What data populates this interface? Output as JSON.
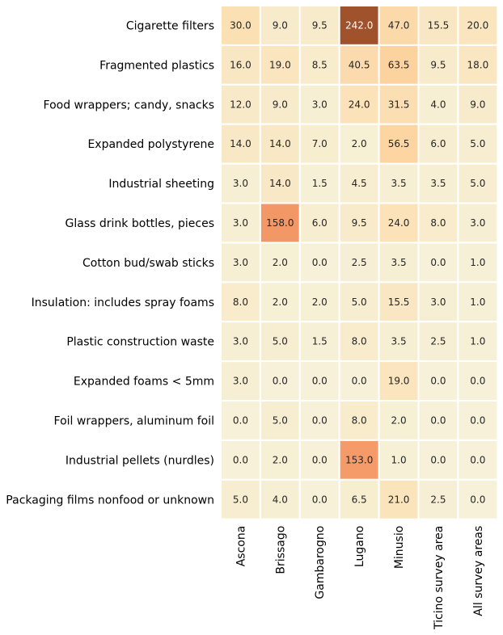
{
  "chart_data": {
    "type": "heatmap",
    "title": "",
    "xlabel": "",
    "ylabel": "",
    "grid": false,
    "legend": "none",
    "rows": [
      "Cigarette filters",
      "Fragmented plastics",
      "Food wrappers; candy, snacks",
      "Expanded polystyrene",
      "Industrial sheeting",
      "Glass drink bottles, pieces",
      "Cotton bud/swab sticks",
      "Insulation: includes spray foams",
      "Plastic construction waste",
      "Expanded foams < 5mm",
      "Foil wrappers, aluminum foil",
      "Industrial pellets (nurdles)",
      "Packaging films nonfood or unknown"
    ],
    "columns": [
      "Ascona",
      "Brissago",
      "Gambarogno",
      "Lugano",
      "Minusio",
      "Ticino survey area",
      "All survey areas"
    ],
    "values": [
      [
        30.0,
        9.0,
        9.5,
        242.0,
        47.0,
        15.5,
        20.0
      ],
      [
        16.0,
        19.0,
        8.5,
        40.5,
        63.5,
        9.5,
        18.0
      ],
      [
        12.0,
        9.0,
        3.0,
        24.0,
        31.5,
        4.0,
        9.0
      ],
      [
        14.0,
        14.0,
        7.0,
        2.0,
        56.5,
        6.0,
        5.0
      ],
      [
        3.0,
        14.0,
        1.5,
        4.5,
        3.5,
        3.5,
        5.0
      ],
      [
        3.0,
        158.0,
        6.0,
        9.5,
        24.0,
        8.0,
        3.0
      ],
      [
        3.0,
        2.0,
        0.0,
        2.5,
        3.5,
        0.0,
        1.0
      ],
      [
        8.0,
        2.0,
        2.0,
        5.0,
        15.5,
        3.0,
        1.0
      ],
      [
        3.0,
        5.0,
        1.5,
        8.0,
        3.5,
        2.5,
        1.0
      ],
      [
        3.0,
        0.0,
        0.0,
        0.0,
        19.0,
        0.0,
        0.0
      ],
      [
        0.0,
        5.0,
        0.0,
        8.0,
        2.0,
        0.0,
        0.0
      ],
      [
        0.0,
        2.0,
        0.0,
        153.0,
        1.0,
        0.0,
        0.0
      ],
      [
        5.0,
        4.0,
        0.0,
        6.5,
        21.0,
        2.5,
        0.0
      ]
    ],
    "value_format": "1 decimal",
    "colormap": "Oranges",
    "color_range": [
      0,
      242
    ],
    "colors": {
      "low": "#f6f1d8",
      "mid_low": "#fbe2b8",
      "mid": "#fcd29f",
      "high": "#f59a68",
      "max": "#a0522d",
      "cell_border": "#ffffff",
      "text_dark": "#262626",
      "text_light": "#ffffff"
    }
  }
}
